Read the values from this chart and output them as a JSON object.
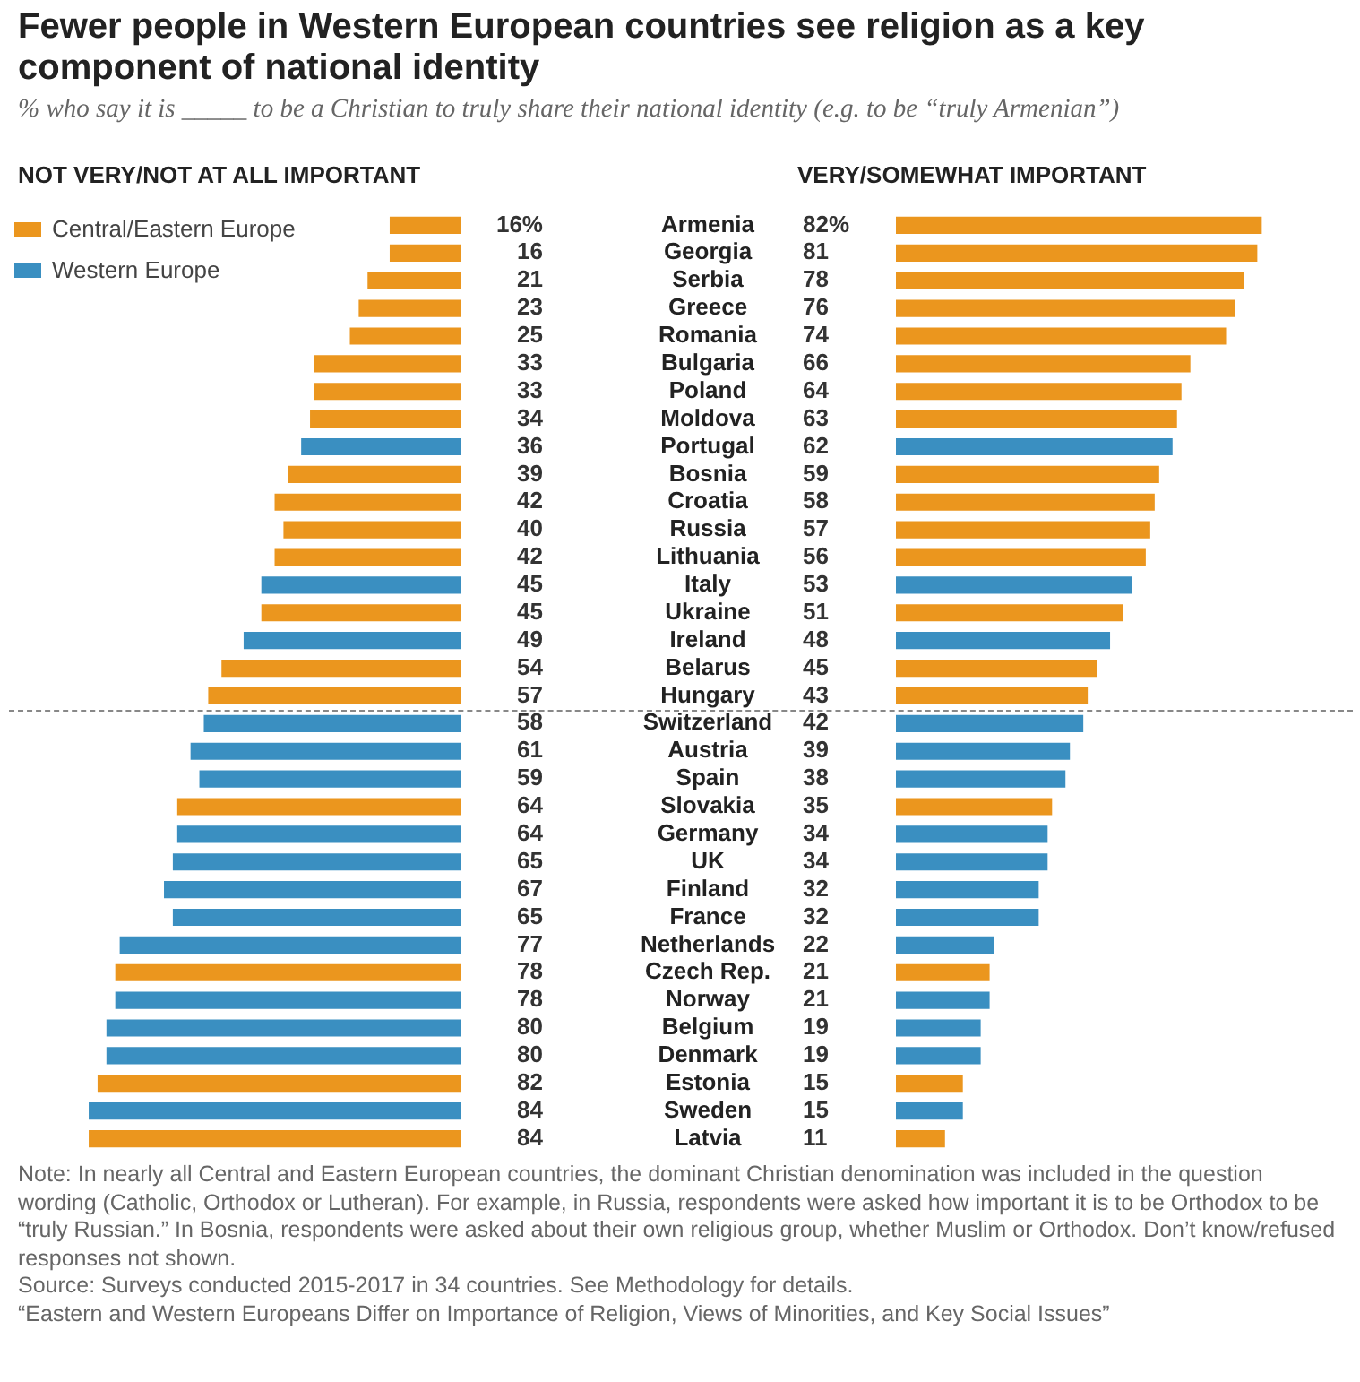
{
  "chart_data": [
    {
      "type": "bar",
      "orientation": "horizontal",
      "stacked": true,
      "title": "Fewer people in Western European countries see religion as a key component of national identity",
      "subtitle": "% who say it is _____ to be a Christian to truly share their national identity (e.g. to be “truly Armenian”)",
      "xlabel": "NOT VERY/NOT AT ALL IMPORTANT",
      "legend": "top left",
      "tick_labels": "y",
      "data_labels": true,
      "categories": [
        "Armenia",
        "Georgia",
        "Serbia",
        "Greece",
        "Romania",
        "Bulgaria",
        "Poland",
        "Moldova",
        "Portugal",
        "Bosnia",
        "Croatia",
        "Russia",
        "Lithuania",
        "Italy",
        "Ukraine",
        "Ireland",
        "Belarus",
        "Hungary",
        "Switzerland",
        "Austria",
        "Spain",
        "Slovakia",
        "Germany",
        "UK",
        "Finland",
        "France",
        "Netherlands",
        "Czech Rep.",
        "Norway",
        "Belgium",
        "Denmark",
        "Estonia",
        "Sweden",
        "Latvia"
      ],
      "series": [
        {
          "name": "Central/Eastern Europe",
          "color": "#eb961e",
          "values": [
            16,
            16,
            21,
            23,
            25,
            33,
            33,
            34,
            null,
            39,
            42,
            40,
            42,
            null,
            45,
            null,
            54,
            57,
            null,
            null,
            null,
            64,
            null,
            null,
            null,
            null,
            null,
            78,
            null,
            null,
            null,
            82,
            null,
            84
          ],
          "value_labels": [
            "16%",
            "16",
            "21",
            "23",
            "25",
            "33",
            "33",
            "34",
            null,
            "39",
            "42",
            "40",
            "42",
            null,
            "45",
            null,
            "54",
            "57",
            null,
            null,
            null,
            "64",
            null,
            null,
            null,
            null,
            null,
            "78",
            null,
            null,
            null,
            "82",
            null,
            "84"
          ]
        },
        {
          "name": "Western Europe",
          "color": "#3a8fc1",
          "values": [
            null,
            null,
            null,
            null,
            null,
            null,
            null,
            null,
            36,
            null,
            null,
            null,
            null,
            45,
            null,
            49,
            null,
            null,
            58,
            61,
            59,
            null,
            64,
            65,
            67,
            65,
            77,
            null,
            78,
            80,
            80,
            null,
            84,
            null
          ],
          "value_labels": [
            null,
            null,
            null,
            null,
            null,
            null,
            null,
            null,
            "36",
            null,
            null,
            null,
            null,
            "45",
            null,
            "49",
            null,
            null,
            "58",
            "61",
            "59",
            null,
            "64",
            "65",
            "67",
            "65",
            "77",
            null,
            "78",
            "80",
            "80",
            null,
            "84",
            null
          ]
        }
      ]
    },
    {
      "type": "bar",
      "orientation": "horizontal",
      "stacked": true,
      "xlabel": "VERY/SOMEWHAT IMPORTANT",
      "tick_labels": false,
      "data_labels": true,
      "categories": [
        null,
        null,
        null,
        null,
        null,
        null,
        null,
        null,
        null,
        null,
        null,
        null,
        null,
        null,
        null,
        null,
        null,
        null,
        null,
        null,
        null,
        null,
        null,
        null,
        null,
        null,
        null,
        null,
        null,
        null,
        null,
        null,
        null,
        null
      ],
      "series": [
        {
          "color": "#eb961e",
          "values": [
            82,
            81,
            78,
            76,
            74,
            66,
            64,
            63,
            null,
            59,
            58,
            57,
            56,
            null,
            51,
            null,
            45,
            43,
            null,
            null,
            null,
            35,
            null,
            null,
            null,
            null,
            null,
            21,
            null,
            null,
            null,
            15,
            null,
            11
          ],
          "value_labels": [
            "82%",
            "81",
            "78",
            "76",
            "74",
            "66",
            "64",
            "63",
            null,
            "59",
            "58",
            "57",
            "56",
            null,
            "51",
            null,
            "45",
            "43",
            null,
            null,
            null,
            "35",
            null,
            null,
            null,
            null,
            null,
            "21",
            null,
            null,
            null,
            "15",
            null,
            "11"
          ]
        },
        {
          "color": "#3a8fc1",
          "values": [
            null,
            null,
            null,
            null,
            null,
            null,
            null,
            null,
            62,
            null,
            null,
            null,
            null,
            53,
            null,
            48,
            null,
            null,
            42,
            39,
            38,
            null,
            34,
            34,
            32,
            32,
            22,
            null,
            21,
            19,
            19,
            null,
            15,
            null
          ],
          "value_labels": [
            null,
            null,
            null,
            null,
            null,
            null,
            null,
            null,
            "62",
            null,
            null,
            null,
            null,
            "53",
            null,
            "48",
            null,
            null,
            "42",
            "39",
            "38",
            null,
            "34",
            "34",
            "32",
            "32",
            "22",
            null,
            "21",
            "19",
            "19",
            null,
            "15",
            null
          ]
        }
      ],
      "annotations": [
        "Note: In nearly all Central and Eastern European countries, the dominant Christian denomination was included in the question wording (Catholic, Orthodox or Lutheran). For example, in Russia, respondents were asked how important it is to be Orthodox to be “truly Russian.” In Bosnia, respondents were asked about their own religious group, whether Muslim or Orthodox. Don’t know/refused responses not shown.",
        "Source: Surveys conducted 2015-2017 in 34 countries. See Methodology for details.",
        "“Eastern and Western Europeans Differ on Importance of Religion, Views of Minorities, and Key Social Issues”"
      ]
    }
  ]
}
